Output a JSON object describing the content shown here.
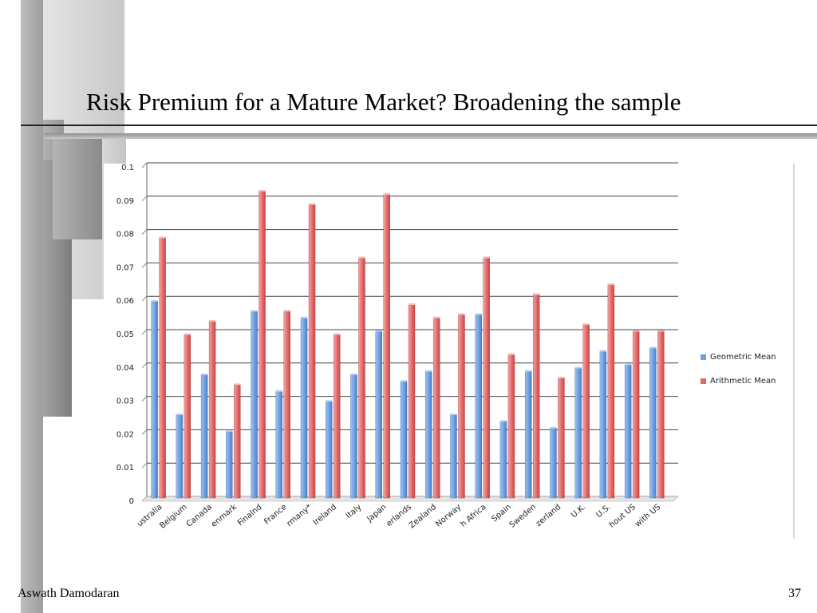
{
  "slide": {
    "title": "Risk Premium for a Mature Market? Broadening the sample",
    "author": "Aswath Damodaran",
    "page_number": "37"
  },
  "colors": {
    "geometric": "#6fa0e0",
    "arithmetic": "#e46a6a"
  },
  "chart_data": {
    "type": "bar",
    "title": "",
    "xlabel": "",
    "ylabel": "",
    "ylim": [
      0,
      0.1
    ],
    "yticks": [
      "0",
      "0.01",
      "0.02",
      "0.03",
      "0.04",
      "0.05",
      "0.06",
      "0.07",
      "0.08",
      "0.09",
      "0.1"
    ],
    "grid": true,
    "legend_position": "right",
    "categories": [
      "ustralia",
      "Belgium",
      "Canada",
      "enmark",
      "Finalnd",
      "France",
      "rmany*",
      "Ireland",
      "Italy",
      "Japan",
      "erlands",
      "Zealand",
      "Norway",
      "h Africa",
      "Spain",
      "Sweden",
      "zerland",
      "U.K.",
      "U.S.",
      "hout US",
      "with US"
    ],
    "series": [
      {
        "name": "Geometric Mean",
        "values": [
          0.059,
          0.025,
          0.037,
          0.02,
          0.056,
          0.032,
          0.054,
          0.029,
          0.037,
          0.05,
          0.035,
          0.038,
          0.025,
          0.055,
          0.023,
          0.038,
          0.021,
          0.039,
          0.044,
          0.04,
          0.045
        ]
      },
      {
        "name": "Arithmetic Mean",
        "values": [
          0.078,
          0.049,
          0.053,
          0.034,
          0.092,
          0.056,
          0.088,
          0.049,
          0.072,
          0.091,
          0.058,
          0.054,
          0.055,
          0.072,
          0.043,
          0.061,
          0.036,
          0.052,
          0.064,
          0.05,
          0.05
        ]
      }
    ]
  }
}
